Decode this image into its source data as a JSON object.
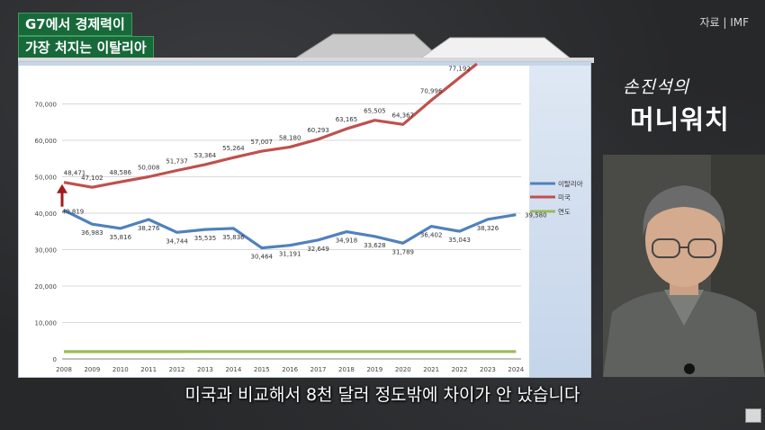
{
  "title_line1": "G7에서 경제력이",
  "title_line2": "가장 처지는 이탈리아",
  "source": "자료 | IMF",
  "logo": {
    "top_text": "손진석의",
    "main_text": "머니워치"
  },
  "subtitle": "미국과 비교해서 8천 달러 정도밖에 차이가 안 났습니다",
  "colors": {
    "italy": "#4f81bd",
    "usa": "#c0504d",
    "year": "#9bbb59",
    "title_bg": "#17693a",
    "arrow": "#a31a1a"
  },
  "icons": [
    "up-arrow-icon",
    "corner-badge-icon"
  ],
  "chart_data": {
    "type": "line",
    "title": "",
    "xlabel": "",
    "ylabel": "",
    "ylim": [
      0,
      80000
    ],
    "y_ticks": [
      "0",
      "10,000",
      "20,000",
      "30,000",
      "40,000",
      "50,000",
      "60,000",
      "70,000"
    ],
    "x": [
      "2008",
      "2009",
      "2010",
      "2011",
      "2012",
      "2013",
      "2014",
      "2015",
      "2016",
      "2017",
      "2018",
      "2019",
      "2020",
      "2021",
      "2022",
      "2023",
      "2024"
    ],
    "legend_position": "right",
    "series": [
      {
        "name": "이탈리아",
        "color": "#4f81bd",
        "values": [
          40819,
          36983,
          35816,
          38276,
          34744,
          35535,
          35836,
          30464,
          31191,
          32649,
          34918,
          33628,
          31789,
          36402,
          35043,
          38326,
          39580
        ],
        "labels": [
          "40,819",
          "36,983",
          "35,816",
          "38,276",
          "34,744",
          "35,535",
          "35,836",
          "30,464",
          "31,191",
          "32,649",
          "34,918",
          "33,628",
          "31,789",
          "36,402",
          "35,043",
          "38,326",
          "39,580"
        ]
      },
      {
        "name": "미국",
        "color": "#c0504d",
        "values": [
          48471,
          47102,
          48586,
          50008,
          51737,
          53364,
          55264,
          57007,
          58180,
          60293,
          63165,
          65505,
          64367,
          70996,
          77192,
          null,
          null
        ],
        "labels": [
          "48,471",
          "47,102",
          "48,586",
          "50,008",
          "51,737",
          "53,364",
          "55,264",
          "57,007",
          "58,180",
          "60,293",
          "63,165",
          "65,505",
          "64,367",
          "70,996",
          "77,192",
          "",
          ""
        ]
      },
      {
        "name": "연도",
        "color": "#9bbb59",
        "values": [
          2008,
          2009,
          2010,
          2011,
          2012,
          2013,
          2014,
          2015,
          2016,
          2017,
          2018,
          2019,
          2020,
          2021,
          2022,
          2023,
          2024
        ],
        "labels": []
      }
    ]
  }
}
